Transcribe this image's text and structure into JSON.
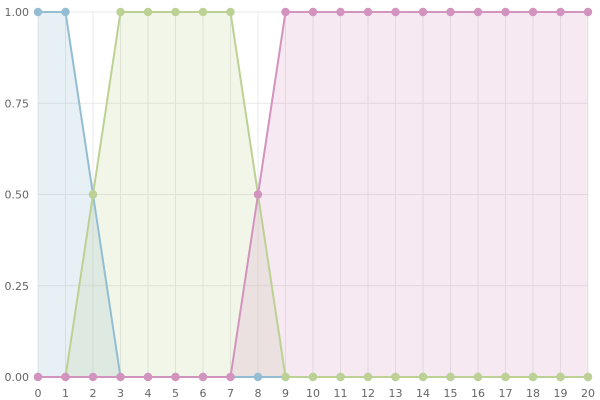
{
  "chart_data": {
    "type": "area",
    "title": "",
    "xlabel": "",
    "ylabel": "",
    "x": [
      0,
      1,
      2,
      3,
      4,
      5,
      6,
      7,
      8,
      9,
      10,
      11,
      12,
      13,
      14,
      15,
      16,
      17,
      18,
      19,
      20
    ],
    "xlim": [
      0,
      20
    ],
    "ylim": [
      0,
      1
    ],
    "x_ticks": [
      "0",
      "1",
      "2",
      "3",
      "4",
      "5",
      "6",
      "7",
      "8",
      "9",
      "10",
      "11",
      "12",
      "13",
      "14",
      "15",
      "16",
      "17",
      "18",
      "19",
      "20"
    ],
    "y_ticks": [
      "0.00",
      "0.25",
      "0.50",
      "0.75",
      "1.00"
    ],
    "y_tick_values": [
      0,
      0.25,
      0.5,
      0.75,
      1.0
    ],
    "grid": true,
    "legend": "none",
    "series": [
      {
        "color": "#93bdd2",
        "fill": "rgba(147,189,210,0.22)",
        "values": [
          1,
          1,
          0.5,
          0,
          0,
          0,
          0,
          0,
          0,
          0,
          0,
          0,
          0,
          0,
          0,
          0,
          0,
          0,
          0,
          0,
          0
        ]
      },
      {
        "color": "#bcd193",
        "fill": "rgba(188,209,147,0.20)",
        "values": [
          0,
          0,
          0.5,
          1,
          1,
          1,
          1,
          1,
          0.5,
          0,
          0,
          0,
          0,
          0,
          0,
          0,
          0,
          0,
          0,
          0,
          0
        ]
      },
      {
        "color": "#d293be",
        "fill": "rgba(210,147,190,0.20)",
        "values": [
          0,
          0,
          0,
          0,
          0,
          0,
          0,
          0,
          0.5,
          1,
          1,
          1,
          1,
          1,
          1,
          1,
          1,
          1,
          1,
          1,
          1
        ]
      }
    ]
  }
}
